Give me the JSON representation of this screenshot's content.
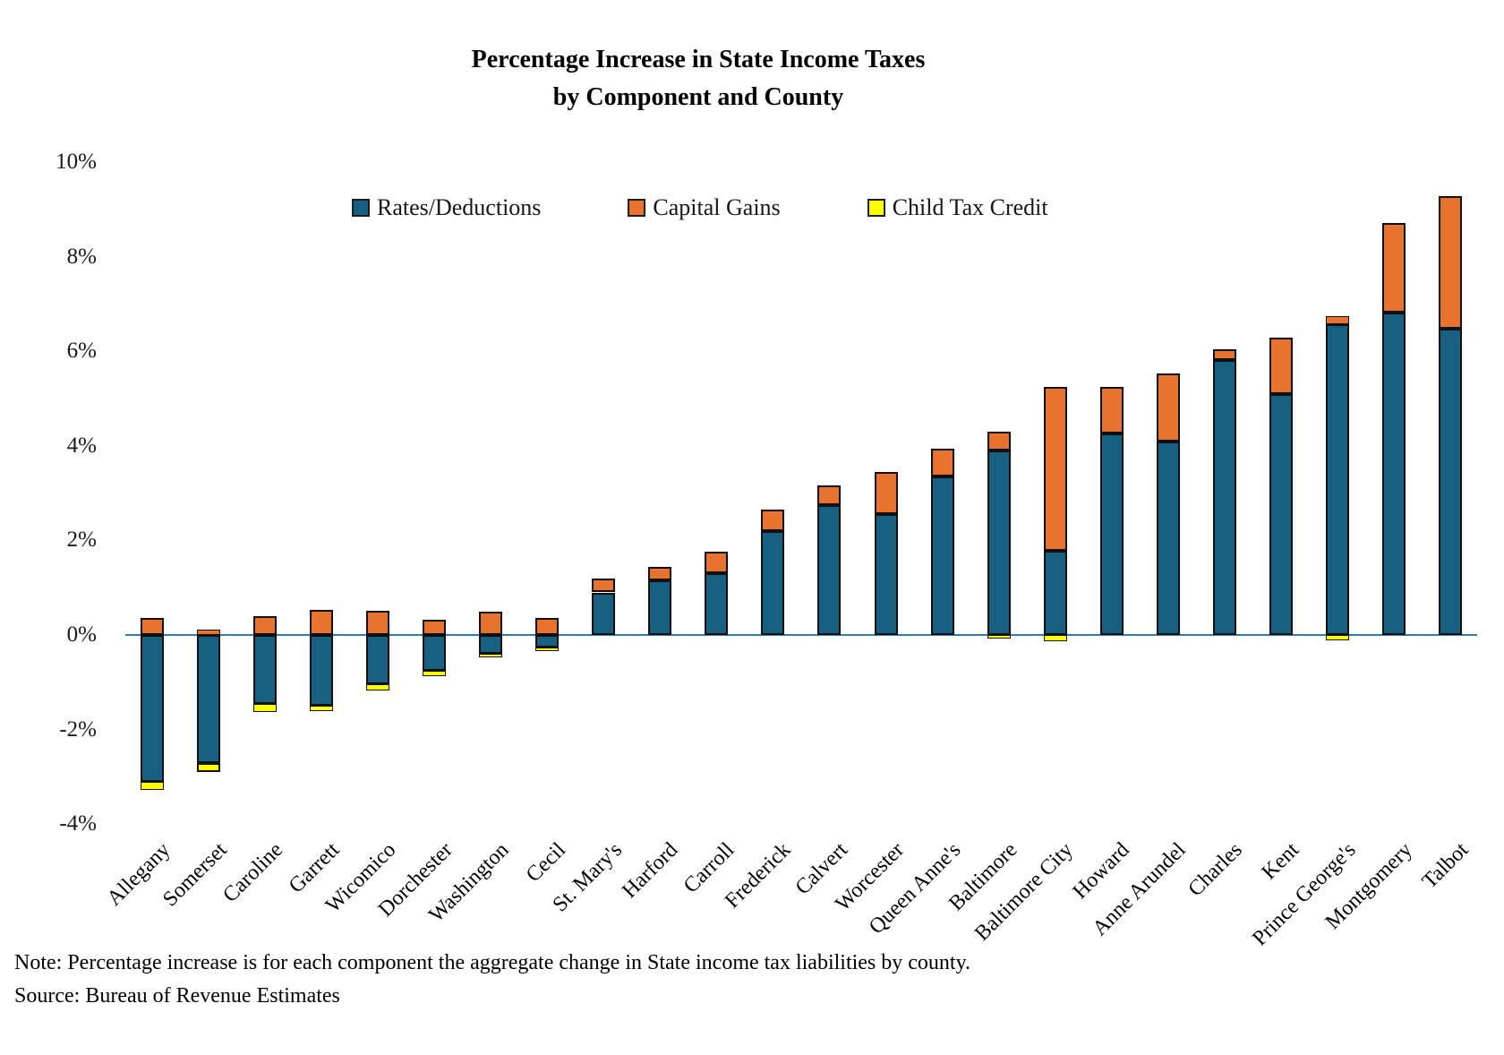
{
  "title": {
    "line1": "Percentage Increase in State Income Taxes",
    "line2": "by Component and County"
  },
  "legend": {
    "items": [
      {
        "label": "Rates/Deductions",
        "color": "#176082"
      },
      {
        "label": "Capital Gains",
        "color": "#E8732E"
      },
      {
        "label": "Child Tax Credit",
        "color": "#FFFF00"
      }
    ]
  },
  "y_axis": {
    "ticks": [
      {
        "label": "10%",
        "value": 10
      },
      {
        "label": "8%",
        "value": 8
      },
      {
        "label": "6%",
        "value": 6
      },
      {
        "label": "4%",
        "value": 4
      },
      {
        "label": "2%",
        "value": 2
      },
      {
        "label": "0%",
        "value": 0
      },
      {
        "label": "-2%",
        "value": -2
      },
      {
        "label": "-4%",
        "value": -4
      }
    ]
  },
  "notes": {
    "line1": "Note: Percentage increase is for each component the aggregate change in State income tax liabilities by county.",
    "line2": "Source: Bureau of Revenue Estimates"
  },
  "colors": {
    "axis_line": "#2F7DA3",
    "bar_border": "#101010"
  },
  "chart_data": {
    "type": "bar",
    "stacked": true,
    "title": "Percentage Increase in State Income Taxes by Component and County",
    "xlabel": "",
    "ylabel": "",
    "ylim": [
      -4,
      10
    ],
    "grid": false,
    "legend_position": "top-center",
    "categories": [
      "Allegany",
      "Somerset",
      "Caroline",
      "Garrett",
      "Wicomico",
      "Dorchester",
      "Washington",
      "Cecil",
      "St. Mary's",
      "Harford",
      "Carroll",
      "Frederick",
      "Calvert",
      "Worcester",
      "Queen Anne's",
      "Baltimore",
      "Baltimore City",
      "Howard",
      "Anne Arundel",
      "Charles",
      "Kent",
      "Prince George's",
      "Montgomery",
      "Talbot"
    ],
    "series": [
      {
        "name": "Rates/Deductions",
        "color": "#176082",
        "values": [
          -3.11,
          -2.7,
          -1.46,
          -1.49,
          -1.05,
          -0.75,
          -0.39,
          -0.27,
          0.9,
          1.16,
          1.31,
          2.2,
          2.74,
          2.55,
          3.36,
          3.9,
          1.79,
          4.26,
          4.1,
          5.82,
          5.09,
          6.57,
          6.82,
          6.48
        ]
      },
      {
        "name": "Capital Gains",
        "color": "#E8732E",
        "values": [
          0.37,
          0.12,
          0.39,
          0.54,
          0.52,
          0.32,
          0.5,
          0.37,
          0.3,
          0.29,
          0.45,
          0.46,
          0.43,
          0.9,
          0.59,
          0.41,
          3.46,
          0.98,
          1.43,
          0.22,
          1.2,
          0.17,
          1.9,
          2.8
        ]
      },
      {
        "name": "Child Tax Credit",
        "color": "#FFFF00",
        "values": [
          -0.16,
          -0.19,
          -0.17,
          -0.12,
          -0.13,
          -0.13,
          -0.09,
          -0.07,
          0,
          0,
          0,
          0,
          0,
          0,
          0,
          -0.08,
          -0.13,
          0,
          0,
          0,
          0,
          -0.12,
          0,
          0
        ]
      }
    ]
  }
}
